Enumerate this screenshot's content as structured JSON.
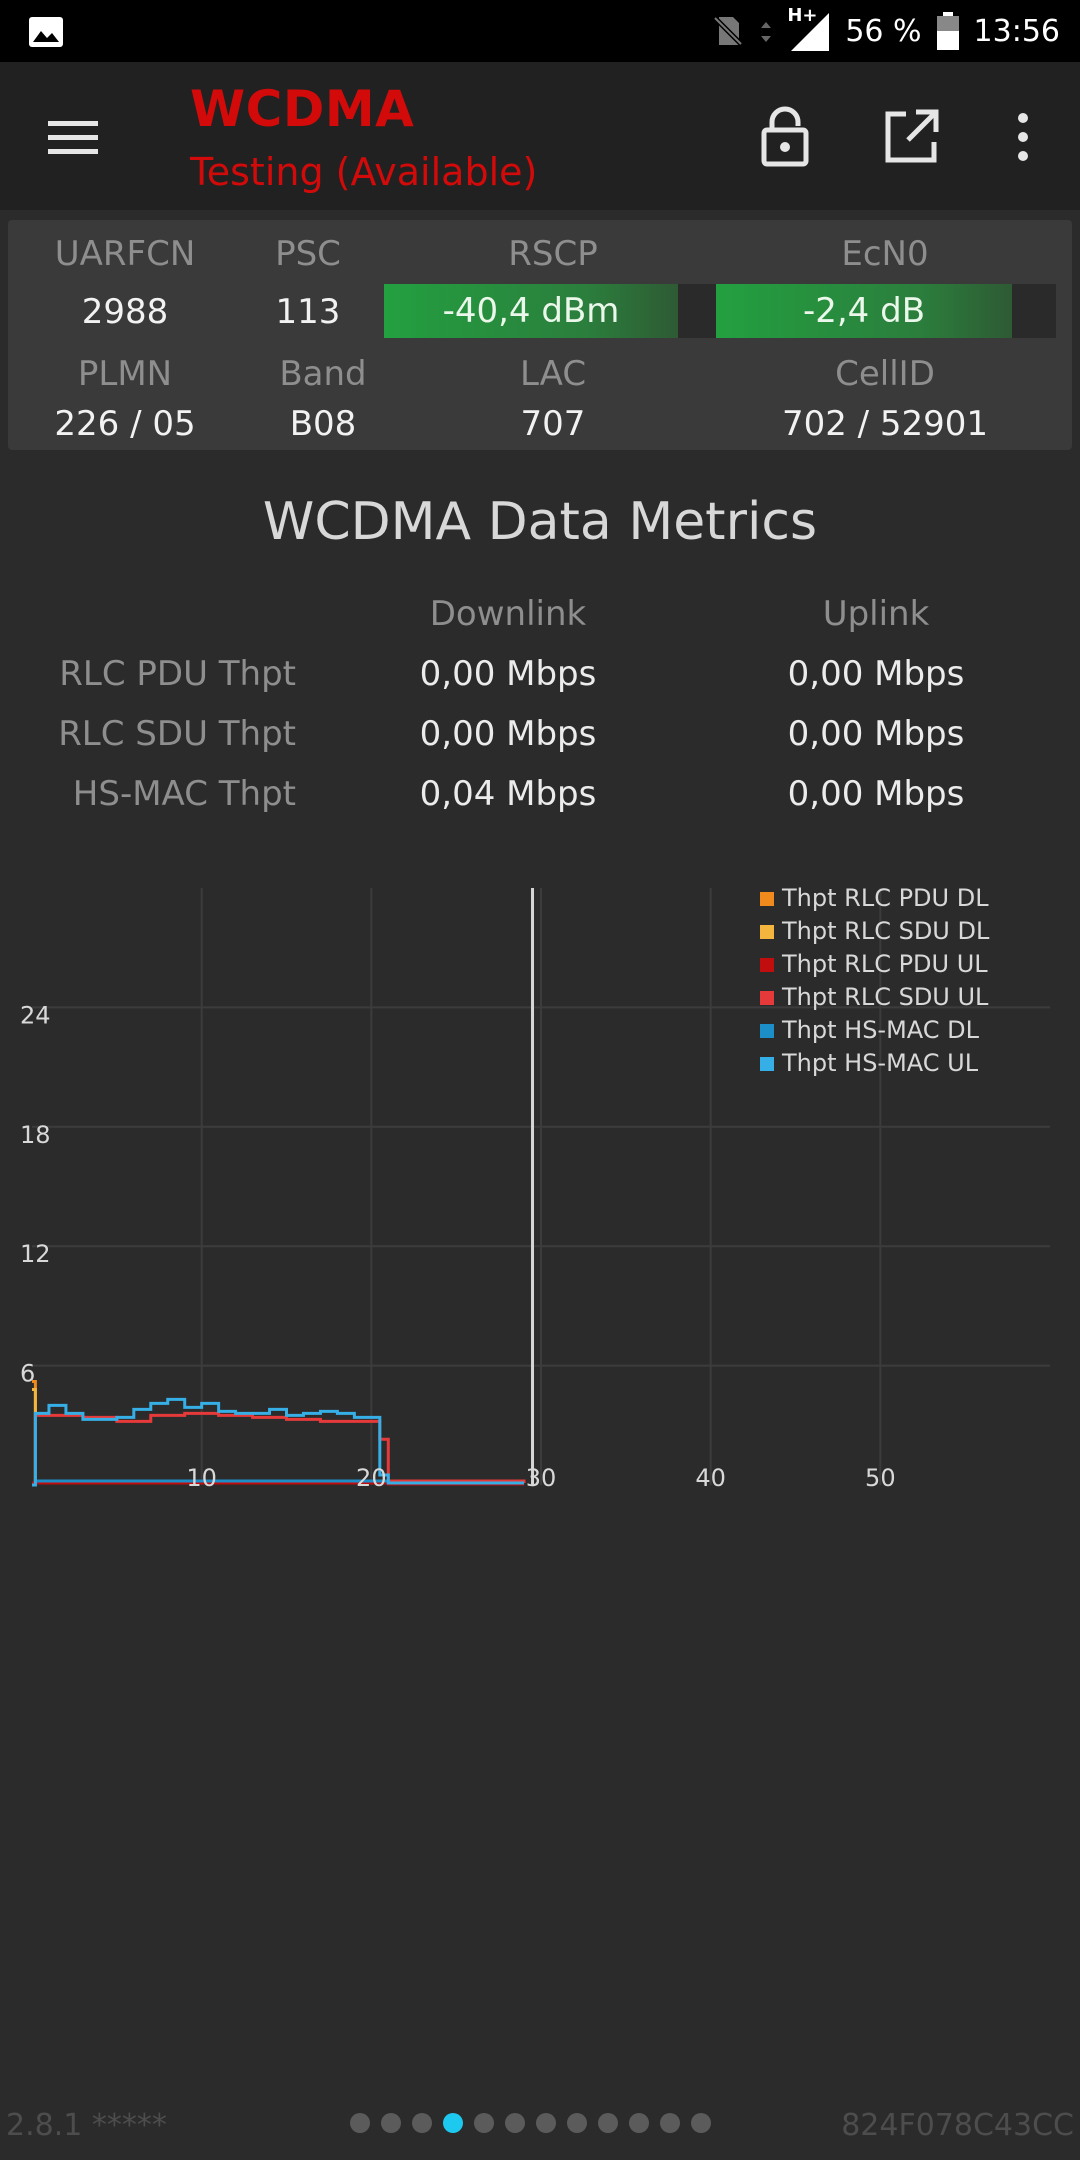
{
  "status_bar": {
    "battery_percent_text": "56 %",
    "time": "13:56",
    "network_type": "H+",
    "icons": [
      "image-icon",
      "no-sim-icon",
      "data-arrows-icon",
      "signal-icon",
      "battery-icon"
    ]
  },
  "toolbar": {
    "title": "WCDMA",
    "subtitle": "Testing (Available)",
    "icons": [
      "menu-icon",
      "lock-open-icon",
      "open-external-icon",
      "more-vert-icon"
    ]
  },
  "cell_info": {
    "uarfcn_label": "UARFCN",
    "uarfcn_value": "2988",
    "psc_label": "PSC",
    "psc_value": "113",
    "rscp_label": "RSCP",
    "rscp_value": "-40,4 dBm",
    "rscp_fill": 0.88,
    "ecn0_label": "EcN0",
    "ecn0_value": "-2,4 dB",
    "ecn0_fill": 0.87,
    "plmn_label": "PLMN",
    "plmn_value": "226 / 05",
    "band_label": "Band",
    "band_value": "B08",
    "lac_label": "LAC",
    "lac_value": "707",
    "cellid_label": "CellID",
    "cellid_value": "702 / 52901"
  },
  "metrics": {
    "title": "WCDMA Data Metrics",
    "downlink_header": "Downlink",
    "uplink_header": "Uplink",
    "rows": [
      {
        "label": "RLC PDU Thpt",
        "downlink": "0,00 Mbps",
        "uplink": "0,00 Mbps"
      },
      {
        "label": "RLC SDU Thpt",
        "downlink": "0,00 Mbps",
        "uplink": "0,00 Mbps"
      },
      {
        "label": "HS-MAC Thpt",
        "downlink": "0,04 Mbps",
        "uplink": "0,00 Mbps"
      }
    ]
  },
  "chart_data": {
    "type": "line",
    "xlim": [
      0,
      60
    ],
    "ylim": [
      0,
      30
    ],
    "x_ticks": [
      10,
      20,
      30,
      40,
      50
    ],
    "y_ticks": [
      6,
      12,
      18,
      24
    ],
    "cursor_x": 29.5,
    "grid": true,
    "legend_position": "top-right",
    "series": [
      {
        "name": "Thpt RLC PDU DL",
        "color": "#f08a1c",
        "step": true,
        "x": [
          0,
          0.1,
          0.2,
          29
        ],
        "y": [
          5.2,
          5.2,
          0.1,
          0.1
        ]
      },
      {
        "name": "Thpt RLC SDU DL",
        "color": "#f4b53f",
        "step": true,
        "x": [
          0,
          0.1,
          0.2,
          29
        ],
        "y": [
          4.8,
          4.8,
          0.1,
          0.1
        ]
      },
      {
        "name": "Thpt RLC PDU UL",
        "color": "#c00d0d",
        "step": true,
        "x": [
          0,
          20.5,
          21,
          29
        ],
        "y": [
          0.1,
          0.1,
          0.05,
          0.05
        ]
      },
      {
        "name": "Thpt RLC SDU UL",
        "color": "#e63a3a",
        "step": true,
        "x": [
          0,
          0.2,
          3,
          5,
          7,
          9,
          11,
          13,
          15,
          17,
          19,
          20.5,
          21,
          29
        ],
        "y": [
          0,
          3.5,
          3.4,
          3.2,
          3.5,
          3.6,
          3.5,
          3.4,
          3.3,
          3.2,
          3.2,
          2.3,
          0.2,
          0.1
        ]
      },
      {
        "name": "Thpt HS-MAC DL",
        "color": "#1d8fc8",
        "step": true,
        "x": [
          0,
          0.2,
          20.5,
          21,
          29
        ],
        "y": [
          0,
          0.2,
          0.2,
          0.1,
          0.1
        ]
      },
      {
        "name": "Thpt HS-MAC UL",
        "color": "#36aee6",
        "step": true,
        "x": [
          0,
          0.2,
          1,
          2,
          3,
          5,
          6,
          7,
          8,
          9,
          10,
          11,
          12,
          13,
          14,
          15,
          16,
          17,
          18,
          19,
          20.2,
          20.5,
          21,
          29
        ],
        "y": [
          0,
          3.6,
          4.0,
          3.6,
          3.3,
          3.4,
          3.8,
          4.1,
          4.3,
          3.9,
          4.1,
          3.7,
          3.6,
          3.6,
          3.8,
          3.5,
          3.6,
          3.7,
          3.6,
          3.4,
          3.4,
          0.5,
          0.1,
          0.1
        ]
      }
    ]
  },
  "footer": {
    "version": "2.8.1 *****",
    "device_id": "824F078C43CC",
    "page_count": 12,
    "active_page": 4
  }
}
